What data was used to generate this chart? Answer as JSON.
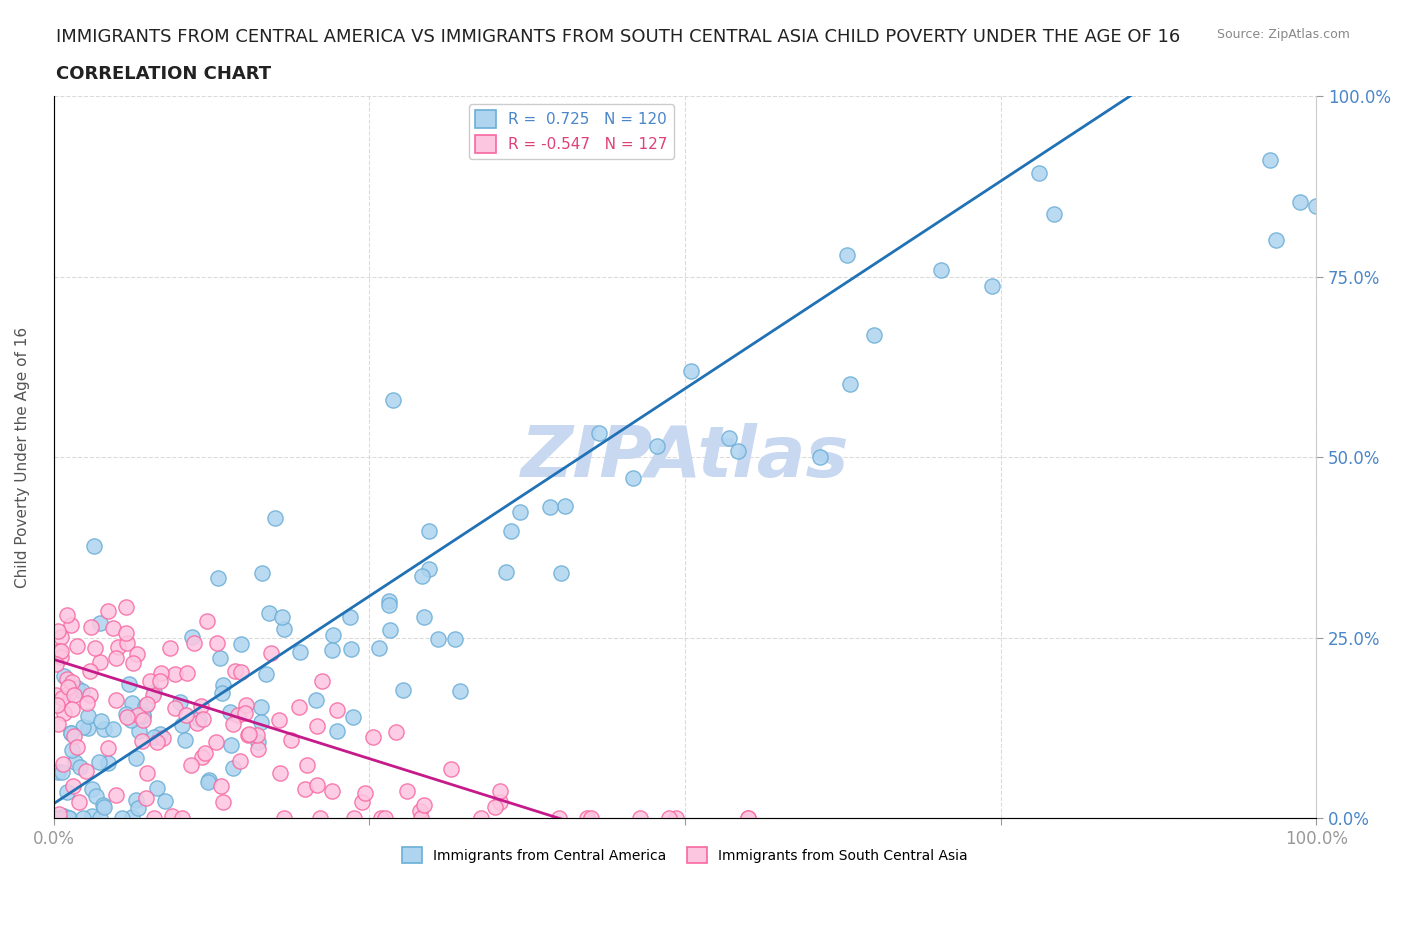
{
  "title_line1": "IMMIGRANTS FROM CENTRAL AMERICA VS IMMIGRANTS FROM SOUTH CENTRAL ASIA CHILD POVERTY UNDER THE AGE OF 16",
  "title_line2": "CORRELATION CHART",
  "source_text": "Source: ZipAtlas.com",
  "ylabel": "Child Poverty Under the Age of 16",
  "x_min": 0.0,
  "x_max": 1.0,
  "y_min": 0.0,
  "y_max": 1.0,
  "blue_R": 0.725,
  "blue_N": 120,
  "pink_R": -0.547,
  "pink_N": 127,
  "blue_color": "#6baed6",
  "blue_fill": "#aed4f0",
  "blue_line_color": "#2171b5",
  "pink_color": "#f768a1",
  "pink_fill": "#fcc5e0",
  "pink_line_color": "#c51b8a",
  "watermark_text": "ZIPAtlas",
  "watermark_color": "#c8d8f0",
  "grid_color": "#cccccc",
  "background_color": "#ffffff",
  "blue_line_slope": 1.15,
  "blue_line_intercept": 0.02,
  "pink_line_slope": -0.55,
  "pink_line_intercept": 0.22,
  "title_fontsize": 13,
  "subtitle_fontsize": 13,
  "axis_label_fontsize": 11,
  "legend_fontsize": 11
}
